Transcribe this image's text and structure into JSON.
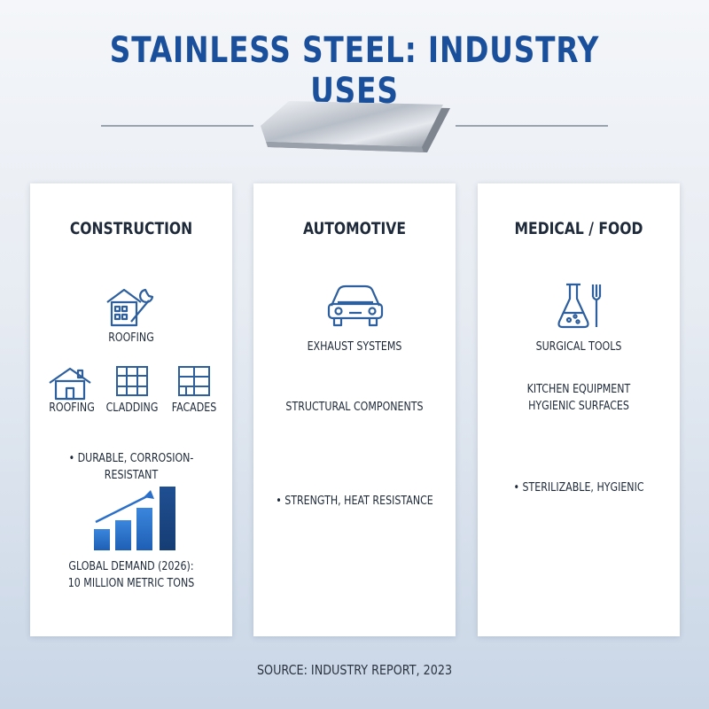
{
  "header": {
    "title": "STAINLESS STEEL: INDUSTRY USES"
  },
  "panels": [
    {
      "title": "CONSTRUCTION",
      "main_icon": "building-wrench-icon",
      "main_label": "ROOFING",
      "sub_items": [
        {
          "label": "ROOFING",
          "icon": "house-icon"
        },
        {
          "label": "CLADDING",
          "icon": "cladding-icon"
        },
        {
          "label": "FACADES",
          "icon": "facade-icon"
        }
      ],
      "bullet": "• DURABLE, CORROSION-RESISTANT",
      "chart_icon": "growth-bar-chart-icon",
      "demand_line1": "GLOBAL DEMAND (2026):",
      "demand_line2": "10 MILLION METRIC TONS"
    },
    {
      "title": "AUTOMOTIVE",
      "icon": "car-icon",
      "item1": "EXHAUST SYSTEMS",
      "item2": "STRUCTURAL COMPONENTS",
      "bullet": "• STRENGTH, HEAT RESISTANCE"
    },
    {
      "title": "MEDICAL / FOOD",
      "icon": "flask-fork-icon",
      "item1": "SURGICAL TOOLS",
      "item2_line1": "KITCHEN EQUIPMENT",
      "item2_line2": "HYGIENIC SURFACES",
      "bullet": "• STERILIZABLE, HYGIENIC"
    }
  ],
  "footer": {
    "source": "SOURCE: INDUSTRY REPORT, 2023"
  },
  "colors": {
    "title_blue": "#1a4f9c",
    "icon_blue": "#2d5f9e",
    "bar_blue": "#2a6fc9",
    "text_dark": "#1e2a3a"
  }
}
